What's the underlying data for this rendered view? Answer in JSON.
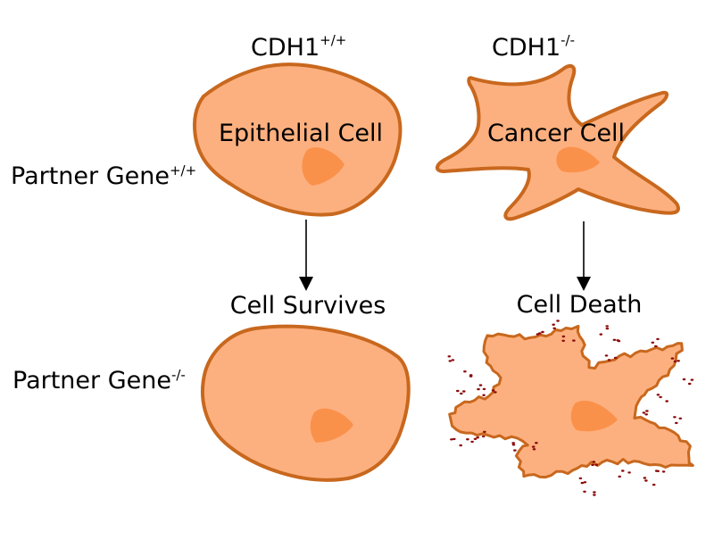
{
  "columns": {
    "left": {
      "gene": "CDH1",
      "genotype": "+/+"
    },
    "right": {
      "gene": "CDH1",
      "genotype": "-/-"
    }
  },
  "rows": {
    "top": {
      "gene": "Partner Gene",
      "genotype": "+/+"
    },
    "bottom": {
      "gene": "Partner Gene",
      "genotype": "-/-"
    }
  },
  "cells": {
    "epithelial": "Epithelial Cell",
    "cancer": "Cancer Cell"
  },
  "outcomes": {
    "survives": "Cell Survives",
    "death": "Cell Death"
  },
  "colors": {
    "cell_fill": "#fdb07f",
    "cell_stroke": "#c8681e",
    "nucleus": "#fa914b",
    "debris": "#8b0a0a",
    "arrow": "#000000"
  }
}
